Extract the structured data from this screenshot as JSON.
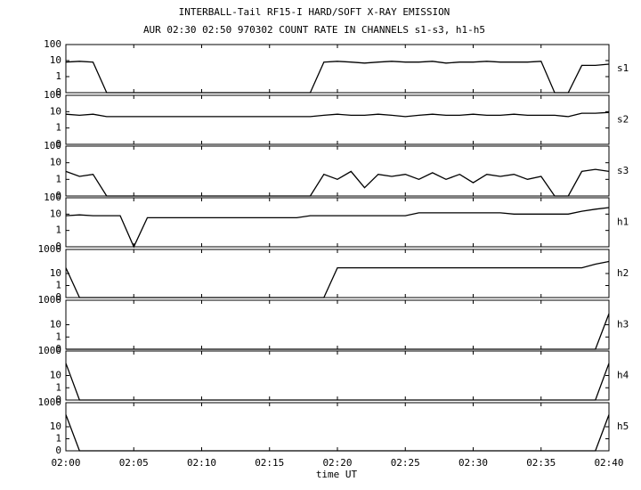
{
  "chart_data": {
    "type": "line",
    "title": "INTERBALL-Tail RF15-I HARD/SOFT X-RAY EMISSION",
    "subtitle": "AUR 02:30 02:50 970302  COUNT RATE IN CHANNELS s1-s3, h1-h5",
    "xlabel": "time UT",
    "yscale": "log",
    "color": "#000000",
    "x": [
      0,
      1,
      2,
      3,
      4,
      5,
      6,
      7,
      8,
      9,
      10,
      11,
      12,
      13,
      14,
      15,
      16,
      17,
      18,
      19,
      20,
      21,
      22,
      23,
      24,
      25,
      26,
      27,
      28,
      29,
      30,
      31,
      32,
      33,
      34,
      35,
      36,
      37,
      38,
      39,
      40
    ],
    "xlim": [
      0,
      40
    ],
    "xticks": [
      {
        "value": 0,
        "label": "02:00"
      },
      {
        "value": 5,
        "label": "02:05"
      },
      {
        "value": 10,
        "label": "02:10"
      },
      {
        "value": 15,
        "label": "02:15"
      },
      {
        "value": 20,
        "label": "02:20"
      },
      {
        "value": 25,
        "label": "02:25"
      },
      {
        "value": 30,
        "label": "02:30"
      },
      {
        "value": 35,
        "label": "02:35"
      },
      {
        "value": 40,
        "label": "02:40"
      }
    ],
    "series": [
      {
        "name": "s1",
        "ylim": [
          0,
          100
        ],
        "yticks": [
          0,
          1,
          10,
          100
        ],
        "values": [
          8,
          9,
          8,
          0,
          0,
          0,
          0,
          0,
          0,
          0,
          0,
          0,
          0,
          0,
          0,
          0,
          0,
          0,
          0,
          8,
          9,
          8,
          7,
          8,
          9,
          8,
          8,
          9,
          7,
          8,
          8,
          9,
          8,
          8,
          8,
          9,
          0,
          0,
          5,
          5,
          6
        ]
      },
      {
        "name": "s2",
        "ylim": [
          0,
          100
        ],
        "yticks": [
          0,
          1,
          10,
          100
        ],
        "values": [
          7,
          6,
          7,
          5,
          5,
          5,
          5,
          5,
          5,
          5,
          5,
          5,
          5,
          5,
          5,
          5,
          5,
          5,
          5,
          6,
          7,
          6,
          6,
          7,
          6,
          5,
          6,
          7,
          6,
          6,
          7,
          6,
          6,
          7,
          6,
          6,
          6,
          5,
          8,
          8,
          9
        ]
      },
      {
        "name": "s3",
        "ylim": [
          0,
          100
        ],
        "yticks": [
          0,
          1,
          10,
          100
        ],
        "values": [
          3,
          1.5,
          2,
          0,
          0,
          0,
          0,
          0,
          0,
          0,
          0,
          0,
          0,
          0,
          0,
          0,
          0,
          0,
          0,
          2,
          1,
          3,
          0.5,
          2,
          1.5,
          2,
          1,
          2.5,
          1,
          2,
          0.8,
          2,
          1.5,
          2,
          1,
          1.5,
          0,
          0,
          3,
          4,
          3
        ]
      },
      {
        "name": "h1",
        "ylim": [
          0,
          100
        ],
        "yticks": [
          0,
          1,
          10,
          100
        ],
        "values": [
          8,
          9,
          8,
          8,
          8,
          0,
          6,
          6,
          6,
          6,
          6,
          6,
          6,
          6,
          6,
          6,
          6,
          6,
          8,
          8,
          8,
          8,
          8,
          8,
          8,
          8,
          12,
          12,
          12,
          12,
          12,
          12,
          12,
          10,
          10,
          10,
          10,
          10,
          15,
          20,
          25
        ]
      },
      {
        "name": "h2",
        "ylim": [
          0,
          1000
        ],
        "yticks": [
          0,
          1,
          10,
          1000
        ],
        "values": [
          30,
          0,
          0,
          0,
          0,
          0,
          0,
          0,
          0,
          0,
          0,
          0,
          0,
          0,
          0,
          0,
          0,
          0,
          0,
          0,
          30,
          30,
          30,
          30,
          30,
          30,
          30,
          30,
          30,
          30,
          30,
          30,
          30,
          30,
          30,
          30,
          30,
          30,
          30,
          60,
          100
        ]
      },
      {
        "name": "h3",
        "ylim": [
          0,
          1000
        ],
        "yticks": [
          0,
          1,
          10,
          1000
        ],
        "values": [
          0,
          0,
          0,
          0,
          0,
          0,
          0,
          0,
          0,
          0,
          0,
          0,
          0,
          0,
          0,
          0,
          0,
          0,
          0,
          0,
          0,
          0,
          0,
          0,
          0,
          0,
          0,
          0,
          0,
          0,
          0,
          0,
          0,
          0,
          0,
          0,
          0,
          0,
          0,
          0,
          80
        ]
      },
      {
        "name": "h4",
        "ylim": [
          0,
          1000
        ],
        "yticks": [
          0,
          1,
          10,
          1000
        ],
        "values": [
          100,
          0,
          0,
          0,
          0,
          0,
          0,
          0,
          0,
          0,
          0,
          0,
          0,
          0,
          0,
          0,
          0,
          0,
          0,
          0,
          0,
          0,
          0,
          0,
          0,
          0,
          0,
          0,
          0,
          0,
          0,
          0,
          0,
          0,
          0,
          0,
          0,
          0,
          0,
          0,
          100
        ]
      },
      {
        "name": "h5",
        "ylim": [
          0,
          1000
        ],
        "yticks": [
          0,
          1,
          10,
          1000
        ],
        "values": [
          100,
          0,
          0,
          0,
          0,
          0,
          0,
          0,
          0,
          0,
          0,
          0,
          0,
          0,
          0,
          0,
          0,
          0,
          0,
          0,
          0,
          0,
          0,
          0,
          0,
          0,
          0,
          0,
          0,
          0,
          0,
          0,
          0,
          0,
          0,
          0,
          0,
          0,
          0,
          0,
          100
        ]
      }
    ]
  }
}
